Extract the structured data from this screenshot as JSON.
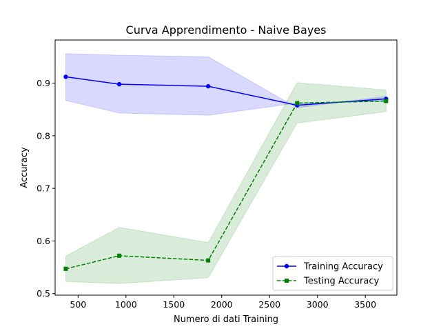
{
  "chart_data": {
    "type": "line",
    "title": "Curva Apprendimento - Naive Bayes",
    "xlabel": "Numero di dati Training",
    "ylabel": "Accuracy",
    "xlim": [
      260,
      3830
    ],
    "ylim": [
      0.497,
      0.982
    ],
    "xticks": [
      500,
      1000,
      1500,
      2000,
      2500,
      3000,
      3500
    ],
    "yticks": [
      0.5,
      0.6,
      0.7,
      0.8,
      0.9
    ],
    "xtick_labels": [
      "500",
      "1000",
      "1500",
      "2000",
      "2500",
      "3000",
      "3500"
    ],
    "ytick_labels": [
      "0.5",
      "0.6",
      "0.7",
      "0.8",
      "0.9"
    ],
    "grid": false,
    "legend_position": "lower-right",
    "series": [
      {
        "name": "Training Accuracy",
        "color": "#0000ff",
        "linestyle": "solid",
        "marker": "circle",
        "x": [
          371,
          930,
          1859,
          2788,
          3717
        ],
        "y": [
          0.912,
          0.898,
          0.894,
          0.858,
          0.87
        ],
        "band_upper": [
          0.956,
          0.953,
          0.95,
          0.853,
          0.875
        ],
        "band_lower": [
          0.867,
          0.843,
          0.839,
          0.862,
          0.865
        ],
        "band_color": "#0000ff"
      },
      {
        "name": "Testing Accuracy",
        "color": "#008000",
        "linestyle": "dashed",
        "marker": "square",
        "x": [
          371,
          930,
          1859,
          2788,
          3717
        ],
        "y": [
          0.547,
          0.572,
          0.563,
          0.862,
          0.866
        ],
        "band_upper": [
          0.571,
          0.626,
          0.597,
          0.901,
          0.887
        ],
        "band_lower": [
          0.523,
          0.519,
          0.53,
          0.824,
          0.846
        ],
        "band_color": "#008000"
      }
    ]
  }
}
